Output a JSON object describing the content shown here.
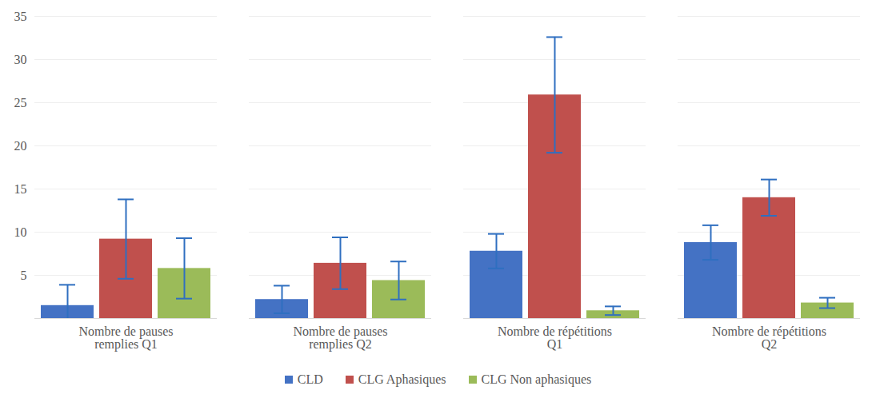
{
  "chart_data": {
    "type": "bar",
    "categories": [
      "Nombre de pauses remplies Q1",
      "Nombre de pauses remplies Q2",
      "Nombre de répétitions Q1",
      "Nombre de répétitions Q2"
    ],
    "series": [
      {
        "name": "CLD",
        "color": "#4472c4",
        "values": [
          1.5,
          2.2,
          7.8,
          8.8
        ],
        "errors": [
          2.4,
          1.6,
          2,
          2
        ]
      },
      {
        "name": "CLG Aphasiques",
        "color": "#c0504d",
        "values": [
          9.2,
          6.4,
          25.9,
          14
        ],
        "errors": [
          4.6,
          3,
          6.7,
          2.1
        ]
      },
      {
        "name": "CLG Non aphasiques",
        "color": "#9bbb59",
        "values": [
          5.8,
          4.4,
          0.9,
          1.8
        ],
        "errors": [
          3.5,
          2.2,
          0.5,
          0.6
        ]
      }
    ],
    "ylim": [
      0,
      35
    ],
    "yticks": [
      5,
      10,
      15,
      20,
      25,
      30,
      35
    ],
    "grid": true,
    "legend": "bottom"
  }
}
